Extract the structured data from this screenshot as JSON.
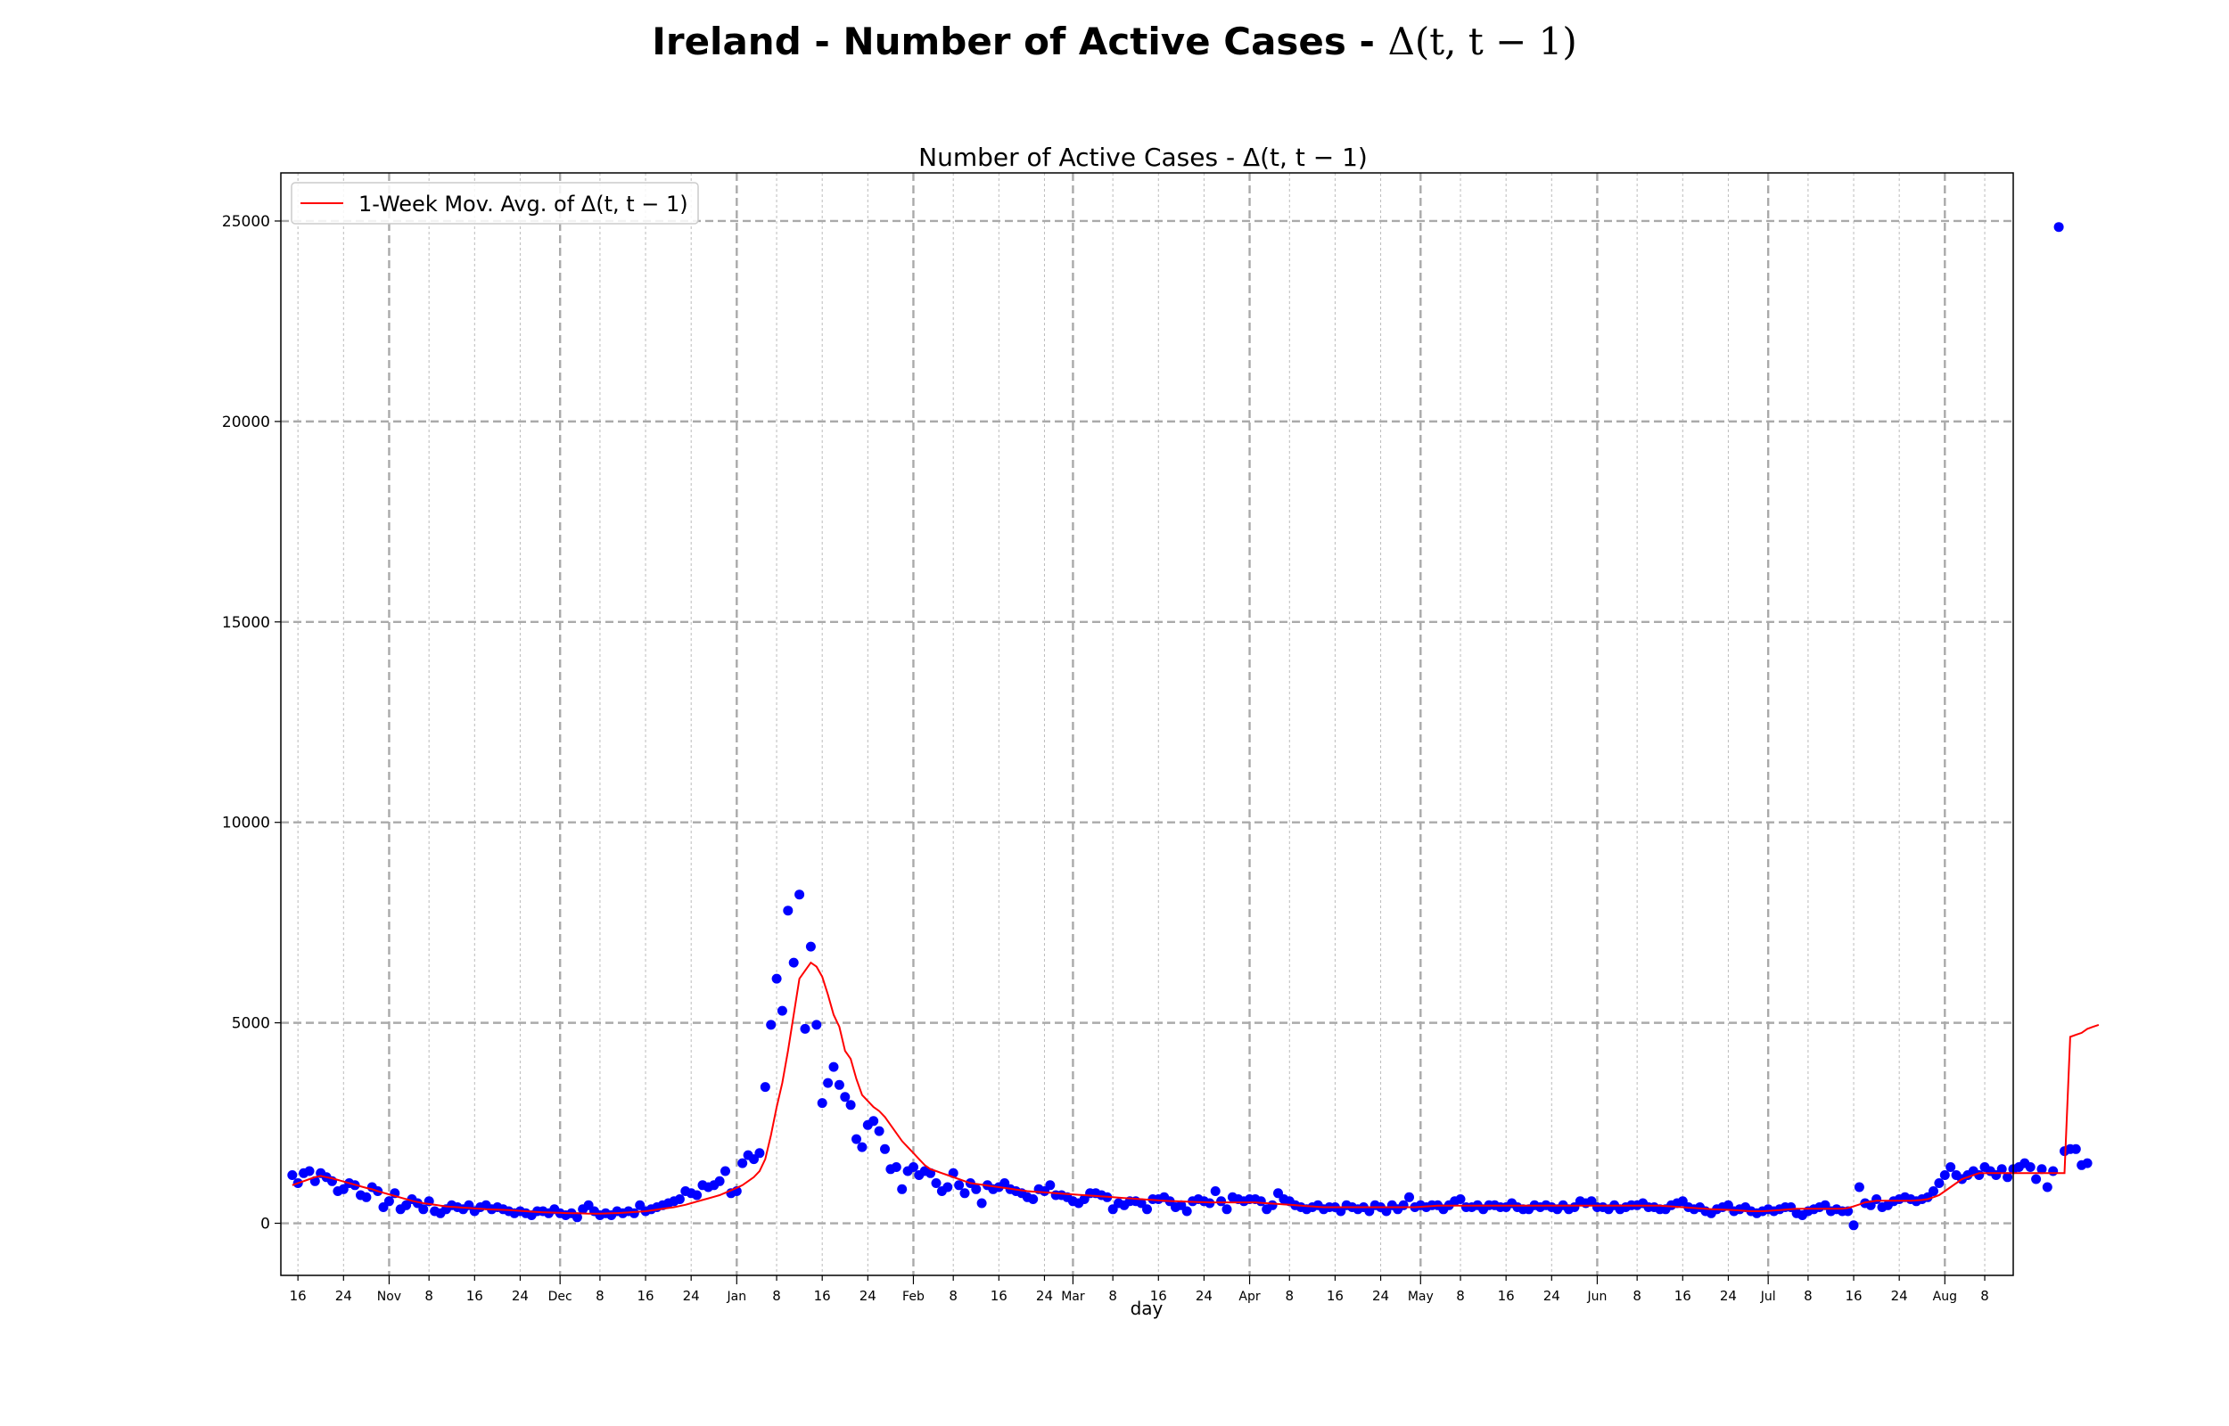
{
  "figure": {
    "suptitle_text": "Ireland - Number of Active Cases - ",
    "suptitle_math": "Δ(t, t − 1)"
  },
  "chart_data": {
    "type": "scatter",
    "title": "Number of Active Cases - Δ(t, t − 1)",
    "xlabel": "day",
    "ylabel": "",
    "ylim": [
      -1300,
      26200
    ],
    "yticks": [
      0,
      5000,
      10000,
      15000,
      20000,
      25000
    ],
    "xlim": [
      "2020-10-13",
      "2021-08-13"
    ],
    "grid": true,
    "legend_position": "top-left",
    "x_ticks": [
      {
        "date": "2020-10-16",
        "label": "16"
      },
      {
        "date": "2020-10-24",
        "label": "24"
      },
      {
        "date": "2020-11-01",
        "label": "Nov"
      },
      {
        "date": "2020-11-08",
        "label": "8"
      },
      {
        "date": "2020-11-16",
        "label": "16"
      },
      {
        "date": "2020-11-24",
        "label": "24"
      },
      {
        "date": "2020-12-01",
        "label": "Dec"
      },
      {
        "date": "2020-12-08",
        "label": "8"
      },
      {
        "date": "2020-12-16",
        "label": "16"
      },
      {
        "date": "2020-12-24",
        "label": "24"
      },
      {
        "date": "2021-01-01",
        "label": "Jan"
      },
      {
        "date": "2021-01-08",
        "label": "8"
      },
      {
        "date": "2021-01-16",
        "label": "16"
      },
      {
        "date": "2021-01-24",
        "label": "24"
      },
      {
        "date": "2021-02-01",
        "label": "Feb"
      },
      {
        "date": "2021-02-08",
        "label": "8"
      },
      {
        "date": "2021-02-16",
        "label": "16"
      },
      {
        "date": "2021-02-24",
        "label": "24"
      },
      {
        "date": "2021-03-01",
        "label": "Mar"
      },
      {
        "date": "2021-03-08",
        "label": "8"
      },
      {
        "date": "2021-03-16",
        "label": "16"
      },
      {
        "date": "2021-03-24",
        "label": "24"
      },
      {
        "date": "2021-04-01",
        "label": "Apr"
      },
      {
        "date": "2021-04-08",
        "label": "8"
      },
      {
        "date": "2021-04-16",
        "label": "16"
      },
      {
        "date": "2021-04-24",
        "label": "24"
      },
      {
        "date": "2021-05-01",
        "label": "May"
      },
      {
        "date": "2021-05-08",
        "label": "8"
      },
      {
        "date": "2021-05-16",
        "label": "16"
      },
      {
        "date": "2021-05-24",
        "label": "24"
      },
      {
        "date": "2021-06-01",
        "label": "Jun"
      },
      {
        "date": "2021-06-08",
        "label": "8"
      },
      {
        "date": "2021-06-16",
        "label": "16"
      },
      {
        "date": "2021-06-24",
        "label": "24"
      },
      {
        "date": "2021-07-01",
        "label": "Jul"
      },
      {
        "date": "2021-07-08",
        "label": "8"
      },
      {
        "date": "2021-07-16",
        "label": "16"
      },
      {
        "date": "2021-07-24",
        "label": "24"
      },
      {
        "date": "2021-08-01",
        "label": "Aug"
      },
      {
        "date": "2021-08-08",
        "label": "8"
      }
    ],
    "series": [
      {
        "name": "",
        "kind": "scatter",
        "color": "#0000ff",
        "start_date": "2020-10-15",
        "values": [
          1200,
          1000,
          1250,
          1300,
          1050,
          1250,
          1150,
          1050,
          800,
          850,
          1000,
          950,
          700,
          650,
          900,
          800,
          400,
          550,
          750,
          350,
          450,
          600,
          500,
          350,
          550,
          300,
          250,
          350,
          450,
          400,
          350,
          450,
          300,
          400,
          450,
          350,
          400,
          350,
          300,
          250,
          300,
          250,
          200,
          300,
          300,
          250,
          350,
          250,
          200,
          250,
          150,
          350,
          450,
          300,
          200,
          250,
          200,
          300,
          250,
          300,
          250,
          450,
          300,
          350,
          400,
          450,
          500,
          550,
          600,
          800,
          750,
          700,
          950,
          900,
          950,
          1050,
          1300,
          750,
          800,
          1500,
          1700,
          1600,
          1750,
          3400,
          4950,
          6100,
          5300,
          7800,
          6500,
          8200,
          4850,
          6900,
          4950,
          3000,
          3500,
          3900,
          3450,
          3150,
          2950,
          2100,
          1900,
          2450,
          2550,
          2300,
          1850,
          1350,
          1400,
          850,
          1300,
          1400,
          1200,
          1300,
          1250,
          1000,
          800,
          900,
          1250,
          950,
          750,
          1000,
          850,
          500,
          950,
          850,
          900,
          1000,
          850,
          800,
          750,
          650,
          600,
          850,
          800,
          950,
          700,
          700,
          650,
          550,
          500,
          600,
          750,
          750,
          700,
          650,
          350,
          500,
          450,
          550,
          550,
          500,
          350,
          600,
          600,
          650,
          550,
          400,
          450,
          300,
          550,
          600,
          550,
          500,
          800,
          550,
          350,
          650,
          600,
          550,
          600,
          600,
          550,
          350,
          450,
          750,
          600,
          550,
          450,
          400,
          350,
          400,
          450,
          350,
          400,
          400,
          300,
          450,
          400,
          350,
          400,
          300,
          450,
          400,
          300,
          450,
          350,
          450,
          650,
          400,
          450,
          400,
          450,
          450,
          350,
          450,
          550,
          600,
          400,
          400,
          450,
          350,
          450,
          450,
          400,
          400,
          500,
          400,
          350,
          350,
          450,
          400,
          450,
          400,
          350,
          450,
          350,
          400,
          550,
          500,
          550,
          400,
          400,
          350,
          450,
          350,
          400,
          450,
          450,
          500,
          400,
          400,
          350,
          350,
          450,
          500,
          550,
          400,
          350,
          400,
          300,
          250,
          350,
          400,
          450,
          300,
          350,
          400,
          300,
          250,
          300,
          350,
          300,
          350,
          400,
          400,
          250,
          200,
          300,
          350,
          400,
          450,
          300,
          350,
          300,
          300,
          -50,
          900,
          500,
          450,
          600,
          400,
          450,
          550,
          600,
          650,
          600,
          550,
          600,
          650,
          800,
          1000,
          1200,
          1400,
          1200,
          1100,
          1200,
          1300,
          1200,
          1400,
          1300,
          1200,
          1350,
          1150,
          1350,
          1400,
          1500,
          1400,
          1100,
          1350,
          900,
          1300,
          24850,
          1800,
          1850,
          1850,
          1450,
          1500
        ]
      },
      {
        "name": "1-Week Mov. Avg. of Δ(t, t − 1)",
        "kind": "line",
        "color": "#ff0000",
        "start_date": "2020-10-15",
        "values": [
          950,
          1000,
          1050,
          1100,
          1150,
          1180,
          1150,
          1120,
          1080,
          1040,
          1000,
          960,
          920,
          880,
          850,
          800,
          760,
          720,
          680,
          640,
          600,
          560,
          530,
          500,
          480,
          460,
          440,
          420,
          410,
          400,
          390,
          380,
          370,
          360,
          350,
          345,
          340,
          335,
          330,
          320,
          310,
          300,
          290,
          280,
          275,
          270,
          265,
          260,
          255,
          250,
          250,
          245,
          240,
          240,
          240,
          245,
          250,
          255,
          260,
          270,
          280,
          290,
          300,
          320,
          340,
          360,
          380,
          400,
          430,
          460,
          500,
          540,
          580,
          620,
          660,
          700,
          760,
          820,
          880,
          950,
          1050,
          1150,
          1300,
          1600,
          2200,
          2900,
          3500,
          4300,
          5200,
          6100,
          6300,
          6500,
          6400,
          6150,
          5700,
          5200,
          4900,
          4300,
          4100,
          3600,
          3200,
          3050,
          2900,
          2800,
          2650,
          2450,
          2250,
          2050,
          1900,
          1750,
          1600,
          1450,
          1350,
          1300,
          1250,
          1200,
          1150,
          1100,
          1050,
          1000,
          980,
          960,
          940,
          920,
          900,
          880,
          860,
          840,
          820,
          800,
          790,
          780,
          770,
          760,
          750,
          740,
          730,
          720,
          710,
          700,
          690,
          680,
          670,
          660,
          650,
          640,
          630,
          620,
          610,
          600,
          590,
          580,
          570,
          560,
          555,
          550,
          545,
          540,
          535,
          530,
          525,
          520,
          520,
          520,
          520,
          520,
          520,
          520,
          520,
          520,
          510,
          500,
          490,
          480,
          470,
          460,
          450,
          440,
          430,
          420,
          410,
          400,
          400,
          400,
          400,
          400,
          400,
          400,
          400,
          400,
          400,
          400,
          400,
          400,
          400,
          400,
          400,
          400,
          410,
          420,
          430,
          440,
          440,
          440,
          440,
          440,
          440,
          440,
          440,
          440,
          440,
          440,
          440,
          440,
          440,
          440,
          440,
          440,
          440,
          440,
          440,
          440,
          440,
          440,
          440,
          440,
          440,
          440,
          440,
          440,
          440,
          440,
          440,
          440,
          440,
          440,
          440,
          440,
          440,
          440,
          440,
          430,
          420,
          410,
          400,
          390,
          380,
          370,
          360,
          350,
          345,
          340,
          335,
          330,
          320,
          310,
          300,
          300,
          300,
          310,
          320,
          330,
          340,
          350,
          360,
          360,
          360,
          360,
          360,
          360,
          360,
          360,
          360,
          380,
          420,
          470,
          520,
          540,
          560,
          560,
          560,
          560,
          560,
          560,
          560,
          570,
          580,
          600,
          650,
          700,
          800,
          900,
          1000,
          1100,
          1150,
          1200,
          1250,
          1250,
          1250,
          1250,
          1250,
          1250,
          1250,
          1250,
          1250,
          1250,
          1250,
          1250,
          1250,
          1250,
          1250,
          1250,
          4650,
          4700,
          4750,
          4850,
          4900,
          4950
        ]
      }
    ]
  }
}
